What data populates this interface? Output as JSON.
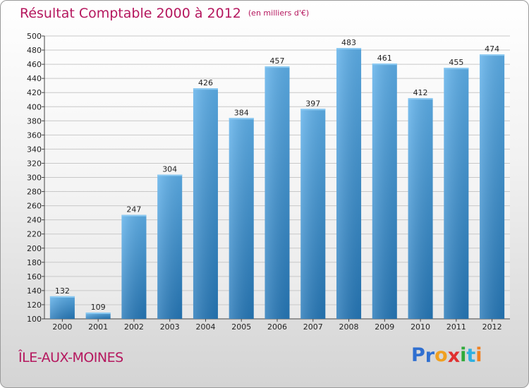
{
  "header": {
    "title": "Résultat Comptable 2000 à 2012",
    "unit": "(en milliers d'€)"
  },
  "footer": {
    "place": "ÎLE-AUX-MOINES",
    "logo_letters": [
      "P",
      "r",
      "o",
      "x",
      "i",
      "t",
      "i"
    ],
    "logo_colors": [
      "#2f6fd0",
      "#2f6fd0",
      "#f0a020",
      "#e03030",
      "#2faa3a",
      "#2fb0e0",
      "#f08020"
    ]
  },
  "colors": {
    "bar_top": "#5eb0ea",
    "bar_bottom": "#2678b8",
    "title": "#b5175e"
  },
  "chart_data": {
    "type": "bar",
    "title": "Résultat Comptable 2000 à 2012",
    "ylabel": "en milliers d'€",
    "xlabel": "",
    "categories": [
      "2000",
      "2001",
      "2002",
      "2003",
      "2004",
      "2005",
      "2006",
      "2007",
      "2008",
      "2009",
      "2010",
      "2011",
      "2012"
    ],
    "values": [
      132,
      109,
      247,
      304,
      426,
      384,
      457,
      397,
      483,
      461,
      412,
      455,
      474
    ],
    "ylim": [
      100,
      500
    ],
    "yticks": [
      100,
      120,
      140,
      160,
      180,
      200,
      220,
      240,
      260,
      280,
      300,
      320,
      340,
      360,
      380,
      400,
      420,
      440,
      460,
      480,
      500
    ],
    "grid": true,
    "legend": "none"
  }
}
